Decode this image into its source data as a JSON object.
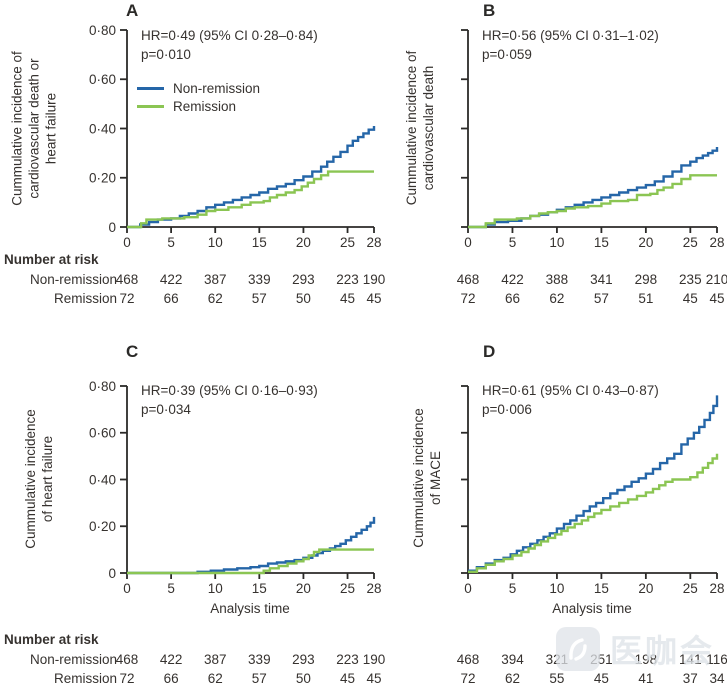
{
  "watermark": {
    "text": "医咖会"
  },
  "shared": {
    "x_axis_label": "Analysis time",
    "number_at_risk_label": "Number at risk",
    "group_labels": [
      "Non-remission",
      "Remission"
    ],
    "colors": {
      "non_remission": "#2566a8",
      "remission": "#8bc553",
      "axis": "#2b2a28"
    }
  },
  "chart_data": [
    {
      "panel": "A",
      "type": "line",
      "title": "HR=0·49 (95% CI 0·28–0·84)",
      "p_value": "p=0·010",
      "ylabel": "Cummulative incidence of cardiovascular death or heart failure",
      "ylabel_lines": [
        "Cummulative incidence of",
        "cardiovascular death or",
        "heart failure"
      ],
      "xlim": [
        0,
        28
      ],
      "ylim": [
        0,
        0.8
      ],
      "x_ticks": [
        0,
        5,
        10,
        15,
        20,
        25,
        28
      ],
      "y_ticks": [
        0,
        0.2,
        0.4,
        0.6,
        0.8
      ],
      "y_tick_labels": [
        "0",
        "0·20",
        "0·40",
        "0·60",
        "0·80"
      ],
      "show_y_tick_labels": true,
      "legend_position": "upper-left",
      "series": [
        {
          "name": "Non-remission",
          "color": "#2566a8",
          "step_points": [
            [
              0,
              0
            ],
            [
              1.5,
              0.01
            ],
            [
              2.5,
              0.02
            ],
            [
              3.5,
              0.03
            ],
            [
              5,
              0.035
            ],
            [
              6,
              0.045
            ],
            [
              7,
              0.055
            ],
            [
              8,
              0.065
            ],
            [
              9,
              0.08
            ],
            [
              10,
              0.09
            ],
            [
              11,
              0.1
            ],
            [
              12,
              0.11
            ],
            [
              13,
              0.12
            ],
            [
              14,
              0.13
            ],
            [
              15,
              0.14
            ],
            [
              16,
              0.155
            ],
            [
              17,
              0.165
            ],
            [
              18,
              0.175
            ],
            [
              19,
              0.19
            ],
            [
              20,
              0.205
            ],
            [
              21,
              0.225
            ],
            [
              22,
              0.245
            ],
            [
              22.7,
              0.265
            ],
            [
              23.4,
              0.285
            ],
            [
              24.2,
              0.305
            ],
            [
              25,
              0.33
            ],
            [
              25.6,
              0.35
            ],
            [
              26.2,
              0.365
            ],
            [
              26.8,
              0.38
            ],
            [
              27.4,
              0.395
            ],
            [
              28,
              0.41
            ]
          ]
        },
        {
          "name": "Remission",
          "color": "#8bc553",
          "step_points": [
            [
              0,
              0
            ],
            [
              1.6,
              0.015
            ],
            [
              2.2,
              0.03
            ],
            [
              4,
              0.035
            ],
            [
              6.5,
              0.04
            ],
            [
              8,
              0.05
            ],
            [
              9,
              0.065
            ],
            [
              10,
              0.07
            ],
            [
              11.5,
              0.08
            ],
            [
              13,
              0.09
            ],
            [
              14,
              0.1
            ],
            [
              15.5,
              0.105
            ],
            [
              16.2,
              0.12
            ],
            [
              17,
              0.13
            ],
            [
              18,
              0.14
            ],
            [
              19,
              0.15
            ],
            [
              19.8,
              0.165
            ],
            [
              20.5,
              0.18
            ],
            [
              21.2,
              0.195
            ],
            [
              22,
              0.21
            ],
            [
              22.8,
              0.225
            ],
            [
              28,
              0.225
            ]
          ]
        }
      ],
      "number_at_risk": [
        [
          468,
          422,
          387,
          339,
          293,
          223,
          190
        ],
        [
          72,
          66,
          62,
          57,
          50,
          45,
          45
        ]
      ]
    },
    {
      "panel": "B",
      "type": "line",
      "title": "HR=0·56 (95% CI 0·31–1·02)",
      "p_value": "p=0·059",
      "ylabel": "Cummulative incidence of cardiovascular death",
      "ylabel_lines": [
        "Cummulative incidence of",
        "cardiovascular death"
      ],
      "xlim": [
        0,
        28
      ],
      "ylim": [
        0,
        0.8
      ],
      "x_ticks": [
        0,
        5,
        10,
        15,
        20,
        25,
        28
      ],
      "y_ticks": [
        0,
        0.2,
        0.4,
        0.6,
        0.8
      ],
      "y_tick_labels": [
        "",
        "",
        "",
        "",
        ""
      ],
      "show_y_tick_labels": false,
      "series": [
        {
          "name": "Non-remission",
          "color": "#2566a8",
          "step_points": [
            [
              0,
              0
            ],
            [
              2,
              0.01
            ],
            [
              3,
              0.02
            ],
            [
              4.5,
              0.025
            ],
            [
              6,
              0.035
            ],
            [
              7,
              0.045
            ],
            [
              8,
              0.05
            ],
            [
              9,
              0.06
            ],
            [
              10,
              0.07
            ],
            [
              11,
              0.08
            ],
            [
              12,
              0.09
            ],
            [
              13,
              0.1
            ],
            [
              14,
              0.11
            ],
            [
              15,
              0.12
            ],
            [
              16,
              0.13
            ],
            [
              17,
              0.14
            ],
            [
              18,
              0.15
            ],
            [
              19,
              0.16
            ],
            [
              20,
              0.17
            ],
            [
              21,
              0.185
            ],
            [
              22,
              0.205
            ],
            [
              23,
              0.225
            ],
            [
              24,
              0.25
            ],
            [
              25,
              0.265
            ],
            [
              25.7,
              0.28
            ],
            [
              26.4,
              0.29
            ],
            [
              27,
              0.3
            ],
            [
              27.5,
              0.31
            ],
            [
              28,
              0.325
            ]
          ]
        },
        {
          "name": "Remission",
          "color": "#8bc553",
          "step_points": [
            [
              0,
              0
            ],
            [
              2,
              0.015
            ],
            [
              3,
              0.03
            ],
            [
              5.5,
              0.035
            ],
            [
              7,
              0.045
            ],
            [
              8,
              0.055
            ],
            [
              9,
              0.06
            ],
            [
              10,
              0.065
            ],
            [
              11,
              0.075
            ],
            [
              12,
              0.08
            ],
            [
              13.5,
              0.085
            ],
            [
              15,
              0.095
            ],
            [
              16,
              0.105
            ],
            [
              18,
              0.11
            ],
            [
              19,
              0.13
            ],
            [
              20.5,
              0.135
            ],
            [
              21.3,
              0.15
            ],
            [
              22,
              0.16
            ],
            [
              23,
              0.175
            ],
            [
              24,
              0.195
            ],
            [
              25,
              0.21
            ],
            [
              28,
              0.21
            ]
          ]
        }
      ],
      "number_at_risk": [
        [
          468,
          422,
          388,
          341,
          298,
          235,
          210
        ],
        [
          72,
          66,
          62,
          57,
          51,
          45,
          45
        ]
      ]
    },
    {
      "panel": "C",
      "type": "line",
      "title": "HR=0·39 (95% CI 0·16–0·93)",
      "p_value": "p=0·034",
      "ylabel": "Cummulative incidence of heart failure",
      "ylabel_lines": [
        "Cummulative incidence",
        "of heart failure"
      ],
      "xlabel": "Analysis time",
      "xlim": [
        0,
        28
      ],
      "ylim": [
        0,
        0.8
      ],
      "x_ticks": [
        0,
        5,
        10,
        15,
        20,
        25,
        28
      ],
      "y_ticks": [
        0,
        0.2,
        0.4,
        0.6,
        0.8
      ],
      "y_tick_labels": [
        "0",
        "0·20",
        "0·40",
        "0·60",
        "0·80"
      ],
      "show_y_tick_labels": true,
      "series": [
        {
          "name": "Non-remission",
          "color": "#2566a8",
          "step_points": [
            [
              0,
              0
            ],
            [
              8,
              0.005
            ],
            [
              9.5,
              0.01
            ],
            [
              11,
              0.015
            ],
            [
              12.5,
              0.02
            ],
            [
              14,
              0.025
            ],
            [
              15,
              0.03
            ],
            [
              16,
              0.04
            ],
            [
              17,
              0.045
            ],
            [
              18,
              0.05
            ],
            [
              19,
              0.055
            ],
            [
              20,
              0.065
            ],
            [
              21,
              0.075
            ],
            [
              21.6,
              0.085
            ],
            [
              22.2,
              0.095
            ],
            [
              23,
              0.105
            ],
            [
              23.6,
              0.115
            ],
            [
              24.2,
              0.125
            ],
            [
              24.8,
              0.14
            ],
            [
              25.4,
              0.155
            ],
            [
              26,
              0.17
            ],
            [
              26.6,
              0.185
            ],
            [
              27.2,
              0.2
            ],
            [
              27.6,
              0.215
            ],
            [
              28,
              0.24
            ]
          ]
        },
        {
          "name": "Remission",
          "color": "#8bc553",
          "step_points": [
            [
              0,
              0
            ],
            [
              15.5,
              0.01
            ],
            [
              16.2,
              0.02
            ],
            [
              17.2,
              0.03
            ],
            [
              18.2,
              0.04
            ],
            [
              19.2,
              0.05
            ],
            [
              20,
              0.06
            ],
            [
              20.6,
              0.075
            ],
            [
              21.2,
              0.09
            ],
            [
              21.8,
              0.1
            ],
            [
              28,
              0.1
            ]
          ]
        }
      ],
      "number_at_risk": [
        [
          468,
          422,
          387,
          339,
          293,
          223,
          190
        ],
        [
          72,
          66,
          62,
          57,
          50,
          45,
          45
        ]
      ]
    },
    {
      "panel": "D",
      "type": "line",
      "title": "HR=0·61 (95% CI 0·43–0·87)",
      "p_value": "p=0·006",
      "ylabel": "Cummulative incidence of MACE",
      "ylabel_lines": [
        "Cummulative incidence",
        "of MACE"
      ],
      "xlabel": "Analysis time",
      "xlim": [
        0,
        28
      ],
      "ylim": [
        0,
        0.8
      ],
      "x_ticks": [
        0,
        5,
        10,
        15,
        20,
        25,
        28
      ],
      "y_ticks": [
        0,
        0.2,
        0.4,
        0.6,
        0.8
      ],
      "y_tick_labels": [
        "",
        "",
        "",
        "",
        ""
      ],
      "show_y_tick_labels": false,
      "series": [
        {
          "name": "Non-remission",
          "color": "#2566a8",
          "step_points": [
            [
              0,
              0.01
            ],
            [
              1,
              0.025
            ],
            [
              2,
              0.04
            ],
            [
              3,
              0.055
            ],
            [
              4,
              0.065
            ],
            [
              4.8,
              0.08
            ],
            [
              5.5,
              0.095
            ],
            [
              6.2,
              0.11
            ],
            [
              7,
              0.125
            ],
            [
              7.8,
              0.14
            ],
            [
              8.5,
              0.155
            ],
            [
              9.2,
              0.17
            ],
            [
              10,
              0.19
            ],
            [
              10.8,
              0.21
            ],
            [
              11.5,
              0.225
            ],
            [
              12.2,
              0.245
            ],
            [
              13,
              0.265
            ],
            [
              13.7,
              0.285
            ],
            [
              14.4,
              0.3
            ],
            [
              15.2,
              0.32
            ],
            [
              16,
              0.34
            ],
            [
              16.8,
              0.355
            ],
            [
              17.6,
              0.37
            ],
            [
              18.4,
              0.39
            ],
            [
              19.2,
              0.405
            ],
            [
              20,
              0.425
            ],
            [
              20.8,
              0.445
            ],
            [
              21.6,
              0.47
            ],
            [
              22.4,
              0.49
            ],
            [
              23.2,
              0.51
            ],
            [
              24,
              0.55
            ],
            [
              24.7,
              0.575
            ],
            [
              25.4,
              0.6
            ],
            [
              26,
              0.625
            ],
            [
              26.6,
              0.655
            ],
            [
              27.2,
              0.685
            ],
            [
              27.6,
              0.715
            ],
            [
              28,
              0.76
            ]
          ]
        },
        {
          "name": "Remission",
          "color": "#8bc553",
          "step_points": [
            [
              0,
              0.005
            ],
            [
              1,
              0.02
            ],
            [
              2,
              0.035
            ],
            [
              3,
              0.05
            ],
            [
              4,
              0.06
            ],
            [
              5,
              0.075
            ],
            [
              6,
              0.09
            ],
            [
              6.8,
              0.105
            ],
            [
              7.5,
              0.12
            ],
            [
              8.2,
              0.135
            ],
            [
              9,
              0.15
            ],
            [
              9.8,
              0.165
            ],
            [
              10.5,
              0.18
            ],
            [
              11.2,
              0.195
            ],
            [
              12,
              0.21
            ],
            [
              12.8,
              0.225
            ],
            [
              13.5,
              0.24
            ],
            [
              14.2,
              0.255
            ],
            [
              15,
              0.27
            ],
            [
              16,
              0.285
            ],
            [
              17,
              0.3
            ],
            [
              18,
              0.315
            ],
            [
              19,
              0.33
            ],
            [
              20,
              0.345
            ],
            [
              20.8,
              0.36
            ],
            [
              21.5,
              0.375
            ],
            [
              22.2,
              0.39
            ],
            [
              23,
              0.4
            ],
            [
              25,
              0.41
            ],
            [
              25.8,
              0.43
            ],
            [
              26.4,
              0.45
            ],
            [
              27,
              0.47
            ],
            [
              27.5,
              0.49
            ],
            [
              28,
              0.51
            ]
          ]
        }
      ],
      "number_at_risk": [
        [
          468,
          394,
          321,
          251,
          198,
          141,
          116
        ],
        [
          72,
          62,
          55,
          45,
          41,
          37,
          34
        ]
      ]
    }
  ]
}
